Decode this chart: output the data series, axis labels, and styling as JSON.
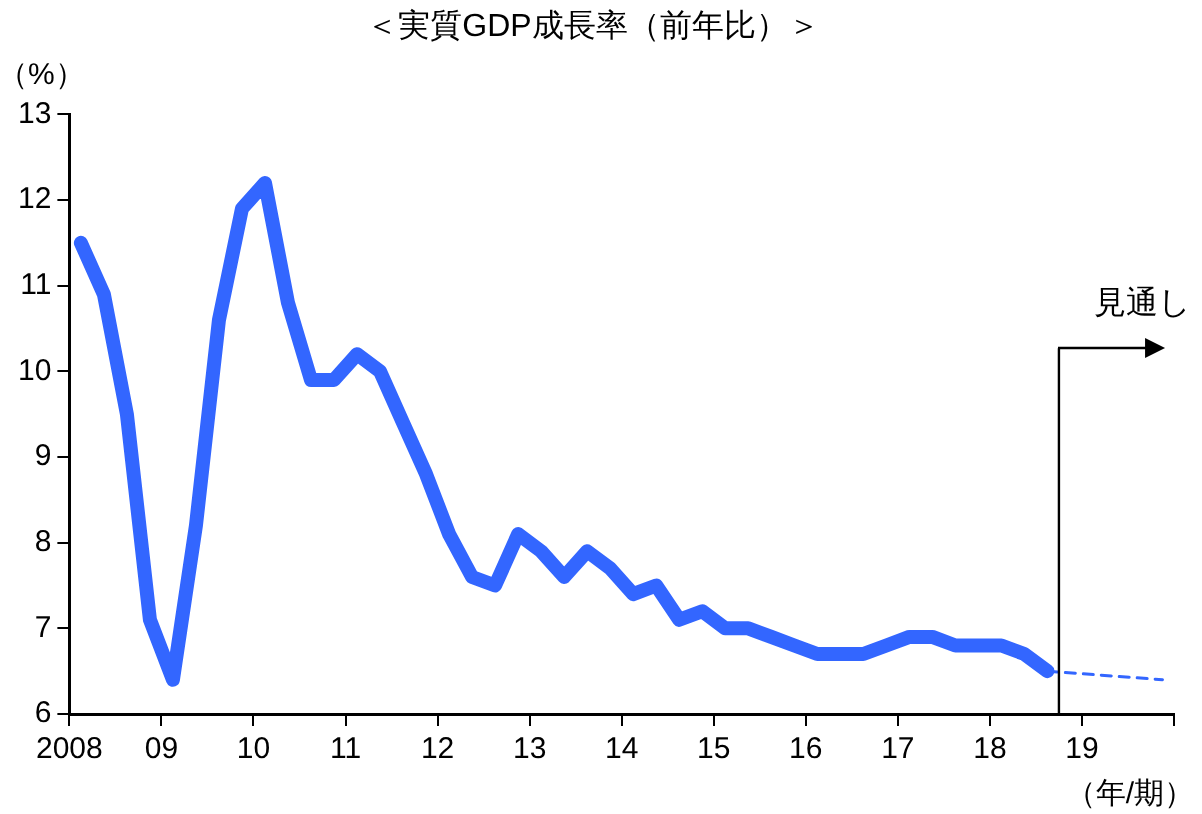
{
  "chart_data": {
    "type": "line",
    "title": "＜実質GDP成長率（前年比）＞",
    "ylabel": "（%）",
    "xlabel": "（年/期）",
    "xlim": [
      2008,
      2020
    ],
    "xticks": [
      {
        "value": 2008,
        "label": "2008"
      },
      {
        "value": 2009,
        "label": "09"
      },
      {
        "value": 2010,
        "label": "10"
      },
      {
        "value": 2011,
        "label": "11"
      },
      {
        "value": 2012,
        "label": "12"
      },
      {
        "value": 2013,
        "label": "13"
      },
      {
        "value": 2014,
        "label": "14"
      },
      {
        "value": 2015,
        "label": "15"
      },
      {
        "value": 2016,
        "label": "16"
      },
      {
        "value": 2017,
        "label": "17"
      },
      {
        "value": 2018,
        "label": "18"
      },
      {
        "value": 2019,
        "label": "19"
      },
      {
        "value": 2020,
        "label": null
      }
    ],
    "ylim": [
      6,
      13
    ],
    "yticks": [
      6,
      7,
      8,
      9,
      10,
      11,
      12,
      13
    ],
    "grid": false,
    "legend": false,
    "marker": "none",
    "series": [
      {
        "color": "#3366ff",
        "line_style": "solid",
        "x": [
          2008.125,
          2008.375,
          2008.625,
          2008.875,
          2009.125,
          2009.375,
          2009.625,
          2009.875,
          2010.125,
          2010.375,
          2010.625,
          2010.875,
          2011.125,
          2011.375,
          2011.625,
          2011.875,
          2012.125,
          2012.375,
          2012.625,
          2012.875,
          2013.125,
          2013.375,
          2013.625,
          2013.875,
          2014.125,
          2014.375,
          2014.625,
          2014.875,
          2015.125,
          2015.375,
          2015.625,
          2015.875,
          2016.125,
          2016.375,
          2016.625,
          2016.875,
          2017.125,
          2017.375,
          2017.625,
          2017.875,
          2018.125,
          2018.375,
          2018.625
        ],
        "values": [
          11.5,
          10.9,
          9.5,
          7.1,
          6.4,
          8.2,
          10.6,
          11.9,
          12.2,
          10.8,
          9.9,
          9.9,
          10.2,
          10.0,
          9.4,
          8.8,
          8.1,
          7.6,
          7.5,
          8.1,
          7.9,
          7.6,
          7.9,
          7.7,
          7.4,
          7.5,
          7.1,
          7.2,
          7.0,
          7.0,
          6.9,
          6.8,
          6.7,
          6.7,
          6.7,
          6.8,
          6.9,
          6.9,
          6.8,
          6.8,
          6.8,
          6.7,
          6.5
        ]
      },
      {
        "color": "#3366ff",
        "line_style": "dashed",
        "x": [
          2018.625,
          2019.875
        ],
        "values": [
          6.5,
          6.4
        ]
      }
    ],
    "ref_lines": [
      {
        "axis": "x",
        "value": 2018.75,
        "label": "見通し",
        "color": "#000000"
      }
    ]
  }
}
